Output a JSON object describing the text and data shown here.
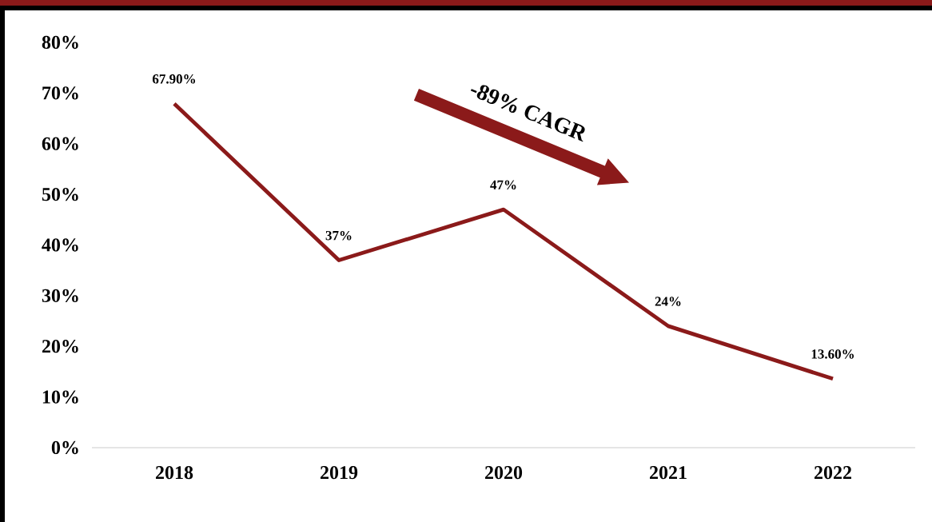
{
  "chart_data": {
    "type": "line",
    "categories": [
      "2018",
      "2019",
      "2020",
      "2021",
      "2022"
    ],
    "values": [
      67.9,
      37,
      47,
      24,
      13.6
    ],
    "value_labels": [
      "67.90%",
      "37%",
      "47%",
      "24%",
      "13.60%"
    ],
    "color": "#8b1a1a",
    "ylim": [
      0,
      80
    ],
    "yticks": [
      {
        "value": 0,
        "label": "0%"
      },
      {
        "value": 10,
        "label": "10%"
      },
      {
        "value": 20,
        "label": "20%"
      },
      {
        "value": 30,
        "label": "30%"
      },
      {
        "value": 40,
        "label": "40%"
      },
      {
        "value": 50,
        "label": "50%"
      },
      {
        "value": 60,
        "label": "60%"
      },
      {
        "value": 70,
        "label": "70%"
      },
      {
        "value": 80,
        "label": "80%"
      }
    ],
    "annotations": [
      "-89% CAGR"
    ]
  }
}
